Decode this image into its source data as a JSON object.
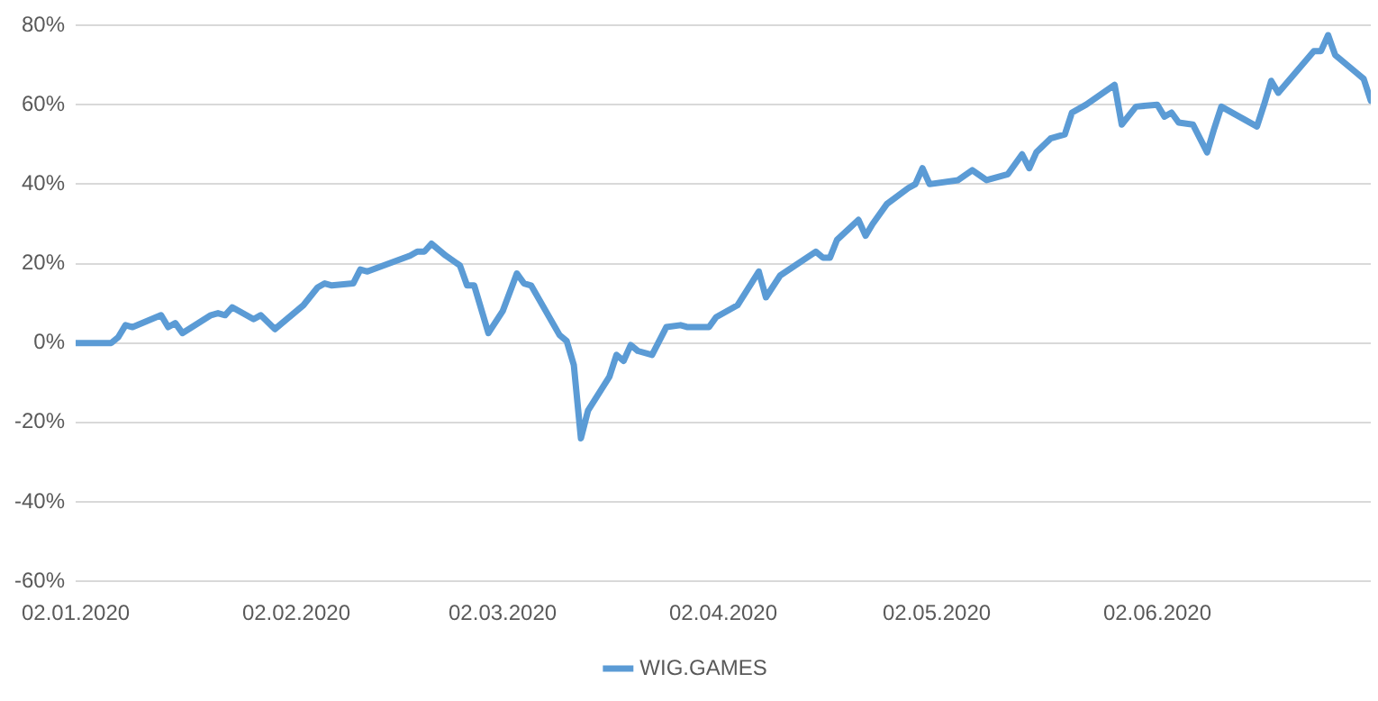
{
  "chart_data": {
    "type": "line",
    "x": [
      "2020-01-02",
      "2020-01-07",
      "2020-01-08",
      "2020-01-09",
      "2020-01-10",
      "2020-01-14",
      "2020-01-15",
      "2020-01-16",
      "2020-01-17",
      "2020-01-21",
      "2020-01-22",
      "2020-01-23",
      "2020-01-24",
      "2020-01-27",
      "2020-01-28",
      "2020-01-30",
      "2020-02-03",
      "2020-02-05",
      "2020-02-06",
      "2020-02-07",
      "2020-02-10",
      "2020-02-11",
      "2020-02-12",
      "2020-02-15",
      "2020-02-18",
      "2020-02-19",
      "2020-02-20",
      "2020-02-21",
      "2020-02-23",
      "2020-02-25",
      "2020-02-26",
      "2020-02-27",
      "2020-02-29",
      "2020-03-02",
      "2020-03-04",
      "2020-03-05",
      "2020-03-06",
      "2020-03-10",
      "2020-03-11",
      "2020-03-12",
      "2020-03-13",
      "2020-03-14",
      "2020-03-17",
      "2020-03-18",
      "2020-03-19",
      "2020-03-20",
      "2020-03-21",
      "2020-03-23",
      "2020-03-25",
      "2020-03-27",
      "2020-03-28",
      "2020-03-31",
      "2020-04-01",
      "2020-04-04",
      "2020-04-07",
      "2020-04-08",
      "2020-04-10",
      "2020-04-15",
      "2020-04-16",
      "2020-04-17",
      "2020-04-18",
      "2020-04-21",
      "2020-04-22",
      "2020-04-23",
      "2020-04-25",
      "2020-04-28",
      "2020-04-29",
      "2020-04-30",
      "2020-05-01",
      "2020-05-05",
      "2020-05-07",
      "2020-05-09",
      "2020-05-12",
      "2020-05-14",
      "2020-05-15",
      "2020-05-16",
      "2020-05-18",
      "2020-05-20",
      "2020-05-21",
      "2020-05-23",
      "2020-05-27",
      "2020-05-28",
      "2020-05-30",
      "2020-06-02",
      "2020-06-03",
      "2020-06-04",
      "2020-06-05",
      "2020-06-07",
      "2020-06-09",
      "2020-06-10",
      "2020-06-11",
      "2020-06-16",
      "2020-06-17",
      "2020-06-18",
      "2020-06-19",
      "2020-06-24",
      "2020-06-25",
      "2020-06-26",
      "2020-06-27",
      "2020-06-30",
      "2020-07-01",
      "2020-07-02"
    ],
    "series": [
      {
        "name": "WIG.GAMES",
        "color": "#5b9bd5",
        "values": [
          0,
          0,
          1.5,
          4.5,
          4,
          7,
          4,
          5,
          2.5,
          7,
          7.5,
          7,
          9,
          6,
          7,
          3.5,
          9.5,
          14,
          15,
          14.5,
          15,
          18.5,
          18,
          20,
          22,
          23,
          23,
          25,
          22,
          19.5,
          14.5,
          14.5,
          2.5,
          8,
          17.5,
          15,
          14.5,
          2,
          0.5,
          -5.5,
          -24,
          -17,
          -8.5,
          -3,
          -4.5,
          -0.5,
          -2,
          -3,
          4,
          4.5,
          4,
          4,
          6.5,
          9.5,
          18,
          11.5,
          17,
          23,
          21.5,
          21.5,
          26,
          31,
          27,
          30,
          35,
          39,
          40,
          44,
          40,
          41,
          43.5,
          41,
          42.5,
          47.5,
          44,
          48,
          51.5,
          52.5,
          58,
          60,
          65,
          55,
          59.5,
          60,
          57,
          58,
          55.5,
          55,
          48,
          54,
          59.5,
          54.5,
          60,
          66,
          63,
          73.5,
          73.5,
          77.5,
          72.5,
          68,
          66.5,
          61
        ]
      }
    ],
    "xlim": [
      "2020-01-02",
      "2020-07-02"
    ],
    "xticks": [
      {
        "value": "2020-01-02",
        "label": "02.01.2020"
      },
      {
        "value": "2020-02-02",
        "label": "02.02.2020"
      },
      {
        "value": "2020-03-02",
        "label": "02.03.2020"
      },
      {
        "value": "2020-04-02",
        "label": "02.04.2020"
      },
      {
        "value": "2020-05-02",
        "label": "02.05.2020"
      },
      {
        "value": "2020-06-02",
        "label": "02.06.2020"
      }
    ],
    "ylim": [
      -60,
      80
    ],
    "yticks": [
      {
        "value": -60,
        "label": "-60%"
      },
      {
        "value": -40,
        "label": "-40%"
      },
      {
        "value": -20,
        "label": "-20%"
      },
      {
        "value": 0,
        "label": "0%"
      },
      {
        "value": 20,
        "label": "20%"
      },
      {
        "value": 40,
        "label": "40%"
      },
      {
        "value": 60,
        "label": "60%"
      },
      {
        "value": 80,
        "label": "80%"
      }
    ],
    "grid": "y",
    "legend": "bottom",
    "marker": "none",
    "line_style": "solid"
  }
}
